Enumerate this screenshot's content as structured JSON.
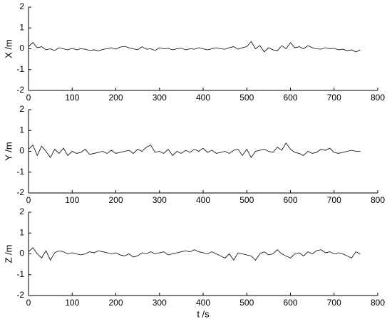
{
  "chart_data": [
    {
      "type": "line",
      "ylabel": "X /m",
      "x": [
        0,
        10,
        20,
        30,
        40,
        50,
        60,
        70,
        80,
        90,
        100,
        110,
        120,
        130,
        140,
        150,
        160,
        170,
        180,
        190,
        200,
        210,
        220,
        230,
        240,
        250,
        260,
        270,
        280,
        290,
        300,
        310,
        320,
        330,
        340,
        350,
        360,
        370,
        380,
        390,
        400,
        410,
        420,
        430,
        440,
        450,
        460,
        470,
        480,
        490,
        500,
        510,
        520,
        530,
        540,
        550,
        560,
        570,
        580,
        590,
        600,
        610,
        620,
        630,
        640,
        650,
        660,
        670,
        680,
        690,
        700,
        710,
        720,
        730,
        740,
        750,
        760
      ],
      "values": [
        0.1,
        0.3,
        0.05,
        0.1,
        -0.05,
        0.0,
        -0.08,
        0.05,
        0.0,
        -0.05,
        0.02,
        -0.05,
        0.0,
        -0.02,
        -0.08,
        -0.05,
        -0.1,
        -0.03,
        0.0,
        0.05,
        -0.02,
        0.08,
        0.12,
        0.05,
        0.0,
        -0.05,
        0.1,
        -0.02,
        0.0,
        -0.08,
        0.05,
        0.0,
        0.02,
        -0.05,
        0.0,
        0.03,
        -0.05,
        0.0,
        -0.02,
        0.05,
        0.0,
        -0.05,
        0.0,
        0.05,
        0.0,
        -0.02,
        0.05,
        0.1,
        -0.02,
        0.05,
        0.1,
        0.35,
        0.0,
        0.15,
        -0.15,
        0.05,
        -0.05,
        -0.1,
        0.15,
        0.0,
        0.3,
        0.05,
        0.1,
        0.0,
        0.15,
        0.05,
        0.0,
        -0.02,
        0.05,
        0.0,
        0.02,
        -0.05,
        -0.02,
        -0.1,
        -0.05,
        -0.15,
        -0.05
      ],
      "color": "#000000",
      "xlim": [
        0,
        800
      ],
      "xticks": [
        0,
        100,
        200,
        300,
        400,
        500,
        600,
        700,
        800
      ],
      "ylim": [
        -2,
        2
      ],
      "yticks": [
        -2,
        -1,
        0,
        1,
        2
      ]
    },
    {
      "type": "line",
      "ylabel": "Y /m",
      "x": [
        0,
        10,
        20,
        30,
        40,
        50,
        60,
        70,
        80,
        90,
        100,
        110,
        120,
        130,
        140,
        150,
        160,
        170,
        180,
        190,
        200,
        210,
        220,
        230,
        240,
        250,
        260,
        270,
        280,
        290,
        300,
        310,
        320,
        330,
        340,
        350,
        360,
        370,
        380,
        390,
        400,
        410,
        420,
        430,
        440,
        450,
        460,
        470,
        480,
        490,
        500,
        510,
        520,
        530,
        540,
        550,
        560,
        570,
        580,
        590,
        600,
        610,
        620,
        630,
        640,
        650,
        660,
        670,
        680,
        690,
        700,
        710,
        720,
        730,
        740,
        750,
        760
      ],
      "values": [
        0.1,
        0.3,
        -0.2,
        0.25,
        0.0,
        -0.3,
        0.1,
        -0.1,
        0.15,
        -0.2,
        0.0,
        -0.1,
        -0.05,
        0.1,
        -0.15,
        -0.1,
        -0.05,
        0.0,
        -0.1,
        0.05,
        -0.1,
        -0.05,
        0.0,
        0.05,
        -0.1,
        0.1,
        0.0,
        0.2,
        0.3,
        -0.05,
        0.0,
        -0.1,
        0.1,
        -0.2,
        0.0,
        -0.1,
        0.05,
        -0.05,
        0.1,
        0.0,
        0.15,
        -0.05,
        0.05,
        -0.1,
        -0.05,
        0.0,
        -0.1,
        0.05,
        0.1,
        -0.2,
        0.1,
        -0.3,
        0.0,
        0.05,
        0.1,
        0.0,
        -0.05,
        0.2,
        0.05,
        0.4,
        0.1,
        -0.05,
        -0.1,
        -0.2,
        0.0,
        -0.1,
        -0.05,
        0.1,
        0.05,
        0.15,
        -0.05,
        -0.1,
        -0.05,
        0.0,
        0.05,
        0.0,
        0.0
      ],
      "color": "#000000",
      "xlim": [
        0,
        800
      ],
      "xticks": [
        0,
        100,
        200,
        300,
        400,
        500,
        600,
        700,
        800
      ],
      "ylim": [
        -2,
        2
      ],
      "yticks": [
        -2,
        -1,
        0,
        1,
        2
      ]
    },
    {
      "type": "line",
      "ylabel": "Z /m",
      "xlabel": "t /s",
      "x": [
        0,
        10,
        20,
        30,
        40,
        50,
        60,
        70,
        80,
        90,
        100,
        110,
        120,
        130,
        140,
        150,
        160,
        170,
        180,
        190,
        200,
        210,
        220,
        230,
        240,
        250,
        260,
        270,
        280,
        290,
        300,
        310,
        320,
        330,
        340,
        350,
        360,
        370,
        380,
        390,
        400,
        410,
        420,
        430,
        440,
        450,
        460,
        470,
        480,
        490,
        500,
        510,
        520,
        530,
        540,
        550,
        560,
        570,
        580,
        590,
        600,
        610,
        620,
        630,
        640,
        650,
        660,
        670,
        680,
        690,
        700,
        710,
        720,
        730,
        740,
        750,
        760
      ],
      "values": [
        0.1,
        0.3,
        0.0,
        -0.2,
        0.15,
        -0.3,
        0.05,
        0.15,
        0.1,
        0.0,
        0.05,
        0.0,
        -0.05,
        0.0,
        0.1,
        0.05,
        0.15,
        0.1,
        0.05,
        0.0,
        0.05,
        -0.05,
        -0.1,
        0.0,
        -0.15,
        -0.1,
        0.05,
        0.0,
        0.1,
        0.0,
        0.05,
        0.1,
        -0.05,
        0.0,
        0.05,
        0.1,
        0.15,
        0.1,
        0.2,
        0.1,
        0.05,
        0.0,
        0.1,
        0.0,
        -0.1,
        -0.2,
        0.0,
        -0.3,
        0.05,
        0.0,
        -0.05,
        -0.1,
        -0.3,
        0.0,
        0.1,
        -0.05,
        0.0,
        0.2,
        0.0,
        -0.1,
        -0.2,
        0.0,
        0.05,
        -0.1,
        0.1,
        0.0,
        0.15,
        0.2,
        0.05,
        0.1,
        0.0,
        0.05,
        0.0,
        -0.1,
        -0.2,
        0.1,
        0.0
      ],
      "color": "#000000",
      "xlim": [
        0,
        800
      ],
      "xticks": [
        0,
        100,
        200,
        300,
        400,
        500,
        600,
        700,
        800
      ],
      "ylim": [
        -2,
        2
      ],
      "yticks": [
        -2,
        -1,
        0,
        1,
        2
      ]
    }
  ]
}
